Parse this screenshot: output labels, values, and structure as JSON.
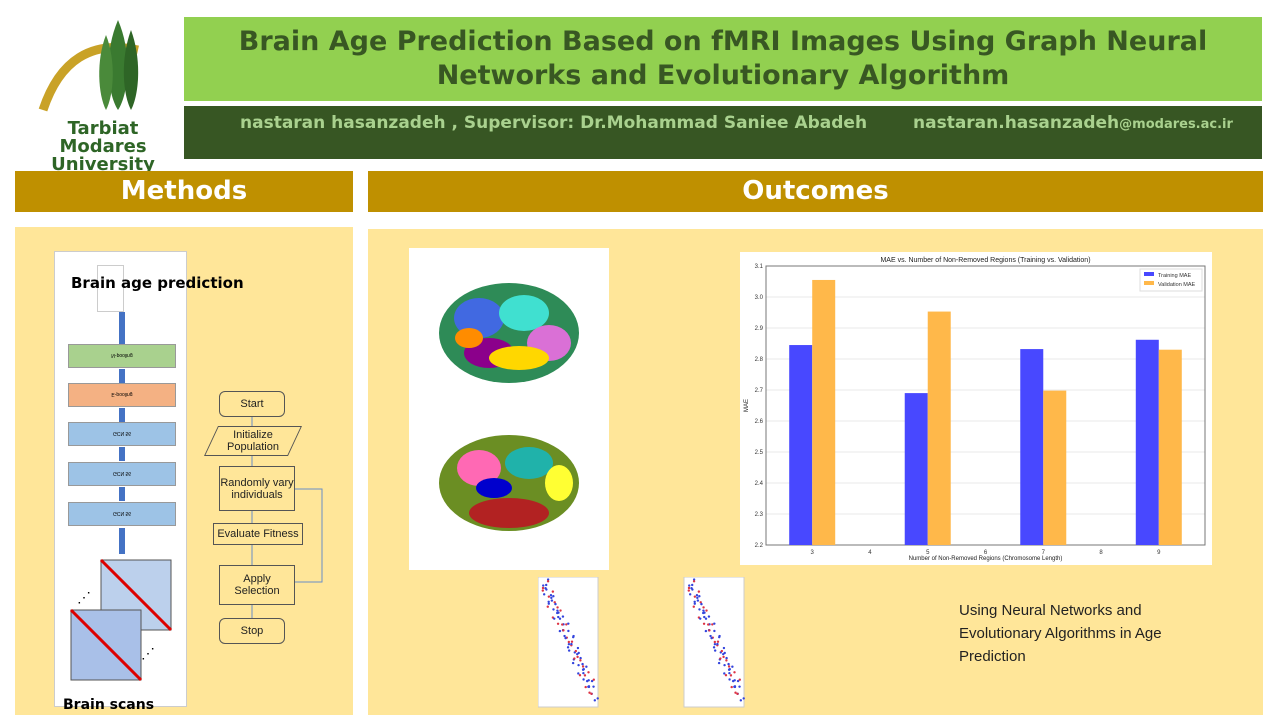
{
  "logo": {
    "name_line1": "Tarbiat Modares",
    "name_line2": "University"
  },
  "header": {
    "title": "Brain Age Prediction Based on fMRI Images Using Graph Neural Networks and Evolutionary Algorithm",
    "authors": "nastaran hasanzadeh , Supervisor: Dr.Mohammad Saniee Abadeh",
    "email_user": "nastaran.hasanzadeh",
    "email_domain": "@modares.ac.ir"
  },
  "methods": {
    "heading": "Methods",
    "top_label": "Brain age prediction",
    "bottom_label": "Brain scans",
    "layers": [
      "N-pooling",
      "E-pooling",
      "GCN 56",
      "GCN 56",
      "GCN 56"
    ],
    "flowchart": [
      "Start",
      "Initialize Population",
      "Randomly vary individuals",
      "Evaluate Fitness",
      "Apply Selection",
      "Stop"
    ]
  },
  "outcomes": {
    "heading": "Outcomes",
    "caption": "Using Neural Networks and Evolutionary Algorithms in Age Prediction"
  },
  "chart_data": {
    "type": "bar",
    "title": "MAE vs. Number of Non-Removed Regions (Training vs. Validation)",
    "xlabel": "Number of Non-Removed Regions (Chromosome Length)",
    "ylabel": "MAE",
    "categories": [
      3,
      5,
      7,
      9
    ],
    "xticks": [
      "3",
      "4",
      "5",
      "6",
      "7",
      "8",
      "9"
    ],
    "yticks": [
      "2.2",
      "2.3",
      "2.4",
      "2.5",
      "2.6",
      "2.7",
      "2.8",
      "2.9",
      "3.0",
      "3.1"
    ],
    "ylim": [
      2.2,
      3.1
    ],
    "series": [
      {
        "name": "Training MAE",
        "color": "#4848ff",
        "values": [
          2.845,
          2.69,
          2.832,
          2.862
        ]
      },
      {
        "name": "Validation MAE",
        "color": "#ffb84a",
        "values": [
          3.055,
          2.953,
          2.698,
          2.83
        ]
      }
    ],
    "legend": "top-right",
    "grid": true
  }
}
